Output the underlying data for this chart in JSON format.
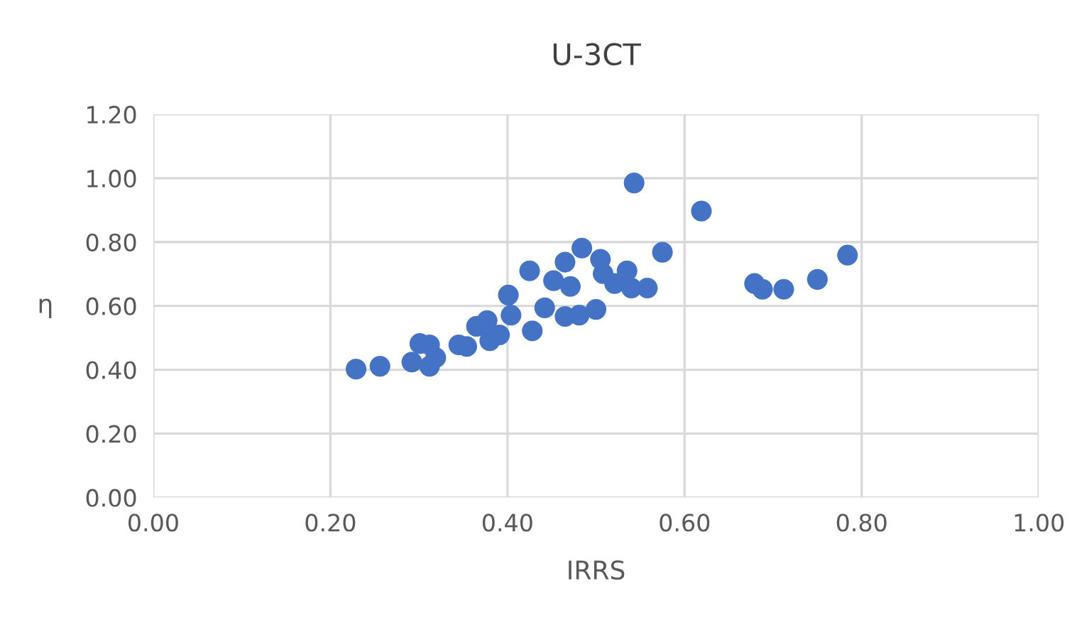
{
  "chart_data": {
    "type": "scatter",
    "title": "U-3CT",
    "xlabel": "IRRS",
    "ylabel": "η",
    "series": [
      {
        "color": "#4472c4",
        "x": [
          0.229,
          0.256,
          0.292,
          0.301,
          0.312,
          0.319,
          0.312,
          0.345,
          0.354,
          0.365,
          0.377,
          0.38,
          0.391,
          0.401,
          0.404,
          0.428,
          0.425,
          0.442,
          0.452,
          0.465,
          0.471,
          0.465,
          0.481,
          0.484,
          0.543,
          0.619,
          0.575,
          0.505,
          0.535,
          0.508,
          0.521,
          0.54,
          0.558,
          0.5,
          0.679,
          0.688,
          0.712,
          0.75,
          0.784
        ],
        "values": [
          0.402,
          0.411,
          0.424,
          0.482,
          0.411,
          0.438,
          0.478,
          0.478,
          0.473,
          0.536,
          0.554,
          0.491,
          0.509,
          0.634,
          0.571,
          0.522,
          0.71,
          0.594,
          0.679,
          0.737,
          0.661,
          0.567,
          0.571,
          0.781,
          0.985,
          0.897,
          0.768,
          0.746,
          0.71,
          0.701,
          0.67,
          0.656,
          0.656,
          0.589,
          0.67,
          0.652,
          0.652,
          0.683,
          0.759
        ]
      }
    ],
    "marker": "circle",
    "grid": true,
    "xlim": [
      0,
      1
    ],
    "xticks": [
      {
        "value": 0,
        "label": "0.00"
      },
      {
        "value": 0.2,
        "label": "0.20"
      },
      {
        "value": 0.4,
        "label": "0.40"
      },
      {
        "value": 0.6,
        "label": "0.60"
      },
      {
        "value": 0.8,
        "label": "0.80"
      },
      {
        "value": 1,
        "label": "1.00"
      }
    ],
    "ylim": [
      0,
      1.2
    ],
    "yticks": [
      {
        "value": 0,
        "label": "0.00"
      },
      {
        "value": 0.2,
        "label": "0.20"
      },
      {
        "value": 0.4,
        "label": "0.40"
      },
      {
        "value": 0.6,
        "label": "0.60"
      },
      {
        "value": 0.8,
        "label": "0.80"
      },
      {
        "value": 1,
        "label": "1.00"
      },
      {
        "value": 1.2,
        "label": "1.20"
      }
    ]
  }
}
